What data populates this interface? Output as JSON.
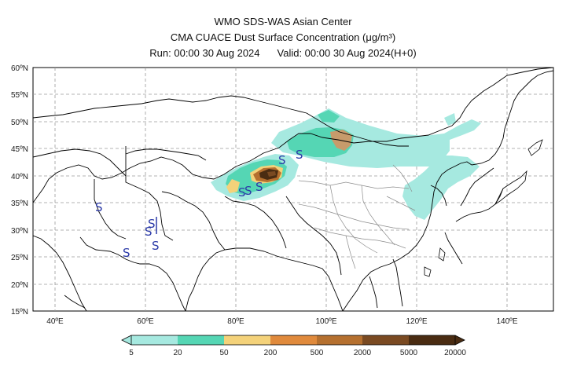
{
  "header": {
    "line1": "WMO SDS-WAS Asian Center",
    "line2": "CMA CUACE Dust Surface Concentration (μg/m³)",
    "run": "Run: 00:00 30 Aug 2024",
    "valid": "Valid: 00:00 30 Aug 2024(H+0)"
  },
  "map": {
    "lon_range": [
      35,
      150
    ],
    "lat_range": [
      15,
      60
    ],
    "lon_ticks": [
      "40ºE",
      "60ºE",
      "80ºE",
      "100ºE",
      "120ºE",
      "140ºE"
    ],
    "lat_ticks": [
      "60ºN",
      "55ºN",
      "50ºN",
      "45ºN",
      "40ºN",
      "35ºN",
      "30ºN",
      "25ºN",
      "20ºN",
      "15ºN"
    ],
    "grid": true,
    "dust_marker_symbol": "S",
    "dust_marker_color": "#2b3aa8"
  },
  "colorbar": {
    "levels": [
      "5",
      "20",
      "50",
      "200",
      "500",
      "2000",
      "5000",
      "20000"
    ],
    "colors": [
      "#a6e9e0",
      "#55d6b4",
      "#f4d27a",
      "#e08a3c",
      "#b5702f",
      "#7a4a22",
      "#4a2c12"
    ]
  }
}
